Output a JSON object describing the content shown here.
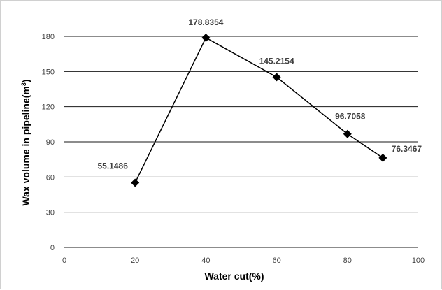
{
  "chart_data": {
    "type": "line",
    "x": [
      20,
      40,
      60,
      80,
      90
    ],
    "series": [
      {
        "values": [
          55.1486,
          178.8354,
          145.2154,
          96.7058,
          76.3467
        ],
        "labels": [
          "55.1486",
          "178.8354",
          "145.2154",
          "96.7058",
          "76.3467"
        ],
        "color": "#000000",
        "marker": "diamond"
      }
    ],
    "xlabel": "Water cut(%)",
    "ylabel_main": "Wax volume in pipeline(m",
    "ylabel_sup": "3",
    "ylabel_close": ")",
    "xlim": [
      0,
      100
    ],
    "ylim": [
      0,
      180
    ],
    "xticks": [
      "0",
      "20",
      "40",
      "60",
      "80",
      "100"
    ],
    "yticks": [
      "0",
      "30",
      "60",
      "90",
      "120",
      "150",
      "180"
    ],
    "grid": "horizontal",
    "legend": "none"
  }
}
